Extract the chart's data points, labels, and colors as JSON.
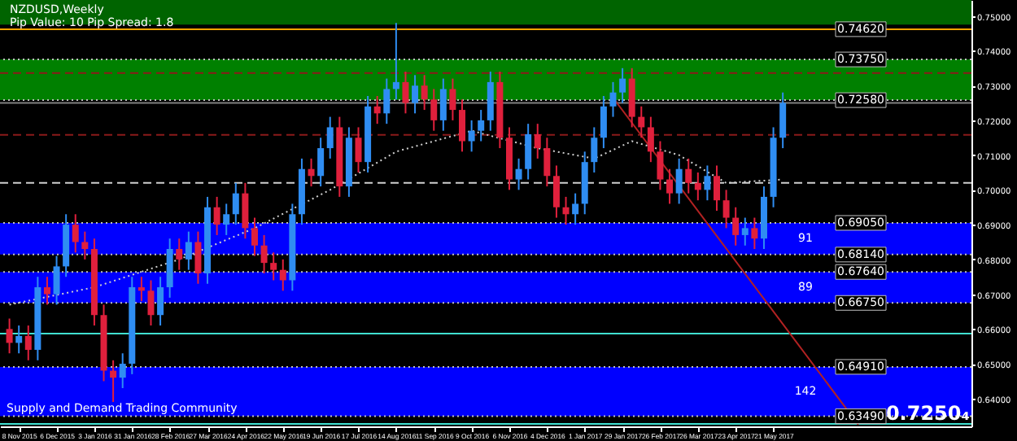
{
  "chart_data": {
    "type": "candlestick",
    "title": "NZDUSD,Weekly",
    "subtitle": "Pip Value: 10   Pip Spread: 1.8",
    "annotations": [
      "0.7250₄",
      "Supply and Demand Trading Community"
    ],
    "xlim": [
      "2015-10-25",
      "2017-10-15"
    ],
    "xticks": [
      {
        "value": "2015-11-08",
        "label": "8 Nov 2015"
      },
      {
        "value": "2015-12-06",
        "label": "6 Dec 2015"
      },
      {
        "value": "2016-01-03",
        "label": "3 Jan 2016"
      },
      {
        "value": "2016-01-31",
        "label": "31 Jan 2016"
      },
      {
        "value": "2016-02-28",
        "label": "28 Feb 2016"
      },
      {
        "value": "2016-03-27",
        "label": "27 Mar 2016"
      },
      {
        "value": "2016-04-24",
        "label": "24 Apr 2016"
      },
      {
        "value": "2016-05-22",
        "label": "22 May 2016"
      },
      {
        "value": "2016-06-19",
        "label": "19 Jun 2016"
      },
      {
        "value": "2016-07-17",
        "label": "17 Jul 2016"
      },
      {
        "value": "2016-08-14",
        "label": "14 Aug 2016"
      },
      {
        "value": "2016-09-11",
        "label": "11 Sep 2016"
      },
      {
        "value": "2016-10-09",
        "label": "9 Oct 2016"
      },
      {
        "value": "2016-11-06",
        "label": "6 Nov 2016"
      },
      {
        "value": "2016-12-04",
        "label": "4 Dec 2016"
      },
      {
        "value": "2017-01-01",
        "label": "1 Jan 2017"
      },
      {
        "value": "2017-01-29",
        "label": "29 Jan 2017"
      },
      {
        "value": "2017-02-26",
        "label": "26 Feb 2017"
      },
      {
        "value": "2017-03-26",
        "label": "26 Mar 2017"
      },
      {
        "value": "2017-04-23",
        "label": "23 Apr 2017"
      },
      {
        "value": "2017-05-21",
        "label": "21 May 2017"
      }
    ],
    "ylim": [
      0.632,
      0.7546
    ],
    "yticks": [
      {
        "value": 0.64,
        "label": "0.64000"
      },
      {
        "value": 0.65,
        "label": "0.65000"
      },
      {
        "value": 0.66,
        "label": "0.66000"
      },
      {
        "value": 0.67,
        "label": "0.67000"
      },
      {
        "value": 0.68,
        "label": "0.68000"
      },
      {
        "value": 0.69,
        "label": "0.69000"
      },
      {
        "value": 0.7,
        "label": "0.70000"
      },
      {
        "value": 0.71,
        "label": "0.71000"
      },
      {
        "value": 0.72,
        "label": "0.72000"
      },
      {
        "value": 0.73,
        "label": "0.73000"
      },
      {
        "value": 0.74,
        "label": "0.74000"
      },
      {
        "value": 0.75,
        "label": "0.75000"
      }
    ],
    "grid": false,
    "bands": [
      {
        "axis": "y",
        "from": 0.7475,
        "to": 0.7546,
        "color": "#006400"
      },
      {
        "axis": "y",
        "from": 0.7258,
        "to": 0.7375,
        "color": "#008000"
      },
      {
        "axis": "y",
        "from": 0.6814,
        "to": 0.6905,
        "label": "91",
        "color": "#0000ff"
      },
      {
        "axis": "y",
        "from": 0.6675,
        "to": 0.6764,
        "label": "89",
        "color": "#0000ff"
      },
      {
        "axis": "y",
        "from": 0.6349,
        "to": 0.6491,
        "label": "142",
        "color": "#0000ff"
      }
    ],
    "ref_lines": [
      {
        "axis": "y",
        "value": 0.7462,
        "label": "0.74620",
        "color": "#ffa500",
        "line_style": "solid"
      },
      {
        "axis": "y",
        "value": 0.7375,
        "label": "0.73750",
        "color": "#c0c0c0",
        "line_style": "dotted"
      },
      {
        "axis": "y",
        "value": 0.7258,
        "label": "0.72580",
        "color": "#c0c0c0",
        "line_style": "dotted"
      },
      {
        "axis": "y",
        "value": 0.725,
        "color": "#808080",
        "line_style": "solid"
      },
      {
        "axis": "y",
        "value": 0.7336,
        "color": "#8b1a1a",
        "line_style": "dashed"
      },
      {
        "axis": "y",
        "value": 0.7158,
        "color": "#8b1a1a",
        "line_style": "dashed"
      },
      {
        "axis": "y",
        "value": 0.702,
        "color": "#d0d0d0",
        "line_style": "dashed"
      },
      {
        "axis": "y",
        "value": 0.6905,
        "label": "0.69050",
        "color": "#c0c0c0",
        "line_style": "dotted"
      },
      {
        "axis": "y",
        "value": 0.6814,
        "label": "0.68140",
        "color": "#c0c0c0",
        "line_style": "dotted"
      },
      {
        "axis": "y",
        "value": 0.6764,
        "label": "0.67640",
        "color": "#c0c0c0",
        "line_style": "dotted"
      },
      {
        "axis": "y",
        "value": 0.6675,
        "label": "0.66750",
        "color": "#c0c0c0",
        "line_style": "dotted"
      },
      {
        "axis": "y",
        "value": 0.6587,
        "color": "#40e0d0",
        "line_style": "solid"
      },
      {
        "axis": "y",
        "value": 0.6491,
        "label": "0.64910",
        "color": "#c0c0c0",
        "line_style": "dotted"
      },
      {
        "axis": "y",
        "value": 0.6349,
        "label": "0.63490",
        "color": "#c0c0c0",
        "line_style": "dotted"
      },
      {
        "axis": "y",
        "value": 0.6327,
        "color": "#40e0d0",
        "line_style": "solid"
      }
    ],
    "series": [
      {
        "type": "candlestick",
        "colors": [
          "#e0203c",
          "#2f8df2",
          "#e0203c",
          "#2f8df2",
          "#e0203c",
          "#2f8df2",
          "#2f8df2",
          "#e0203c",
          "#e0203c",
          "#e0203c",
          "#e0203c",
          "#e0203c",
          "#2f8df2",
          "#2f8df2",
          "#e0203c",
          "#e0203c",
          "#2f8df2",
          "#2f8df2",
          "#e0203c",
          "#2f8df2",
          "#e0203c",
          "#2f8df2",
          "#e0203c",
          "#2f8df2",
          "#2f8df2",
          "#e0203c",
          "#e0203c",
          "#e0203c",
          "#e0203c",
          "#e0203c",
          "#2f8df2",
          "#2f8df2",
          "#e0203c",
          "#2f8df2",
          "#2f8df2",
          "#e0203c",
          "#2f8df2",
          "#e0203c",
          "#2f8df2",
          "#e0203c",
          "#2f8df2",
          "#2f8df2",
          "#e0203c",
          "#2f8df2",
          "#e0203c",
          "#e0203c",
          "#2f8df2",
          "#e0203c",
          "#e0203c",
          "#2f8df2",
          "#2f8df2",
          "#2f8df2",
          "#e0203c",
          "#e0203c",
          "#2f8df2",
          "#2f8df2",
          "#e0203c",
          "#e0203c",
          "#e0203c",
          "#e0203c",
          "#2f8df2",
          "#2f8df2",
          "#2f8df2",
          "#2f8df2",
          "#2f8df2",
          "#2f8df2",
          "#e0203c",
          "#e0203c",
          "#e0203c",
          "#e0203c",
          "#e0203c",
          "#2f8df2",
          "#e0203c",
          "#e0203c",
          "#2f8df2",
          "#e0203c",
          "#e0203c",
          "#e0203c",
          "#2f8df2",
          "#e0203c",
          "#2f8df2",
          "#2f8df2",
          "#2f8df2"
        ],
        "x": [
          "2015-11-01",
          "2015-11-08",
          "2015-11-15",
          "2015-11-22",
          "2015-11-29",
          "2015-12-06",
          "2015-12-13",
          "2015-12-20",
          "2015-12-27",
          "2016-01-03",
          "2016-01-10",
          "2016-01-17",
          "2016-01-24",
          "2016-01-31",
          "2016-02-07",
          "2016-02-14",
          "2016-02-21",
          "2016-02-28",
          "2016-03-06",
          "2016-03-13",
          "2016-03-20",
          "2016-03-27",
          "2016-04-03",
          "2016-04-10",
          "2016-04-17",
          "2016-04-24",
          "2016-05-01",
          "2016-05-08",
          "2016-05-15",
          "2016-05-22",
          "2016-05-29",
          "2016-06-05",
          "2016-06-12",
          "2016-06-19",
          "2016-06-26",
          "2016-07-03",
          "2016-07-10",
          "2016-07-17",
          "2016-07-24",
          "2016-07-31",
          "2016-08-07",
          "2016-08-14",
          "2016-08-21",
          "2016-08-28",
          "2016-09-04",
          "2016-09-11",
          "2016-09-18",
          "2016-09-25",
          "2016-10-02",
          "2016-10-09",
          "2016-10-16",
          "2016-10-23",
          "2016-10-30",
          "2016-11-06",
          "2016-11-13",
          "2016-11-20",
          "2016-11-27",
          "2016-12-04",
          "2016-12-11",
          "2016-12-18",
          "2016-12-25",
          "2017-01-01",
          "2017-01-08",
          "2017-01-15",
          "2017-01-22",
          "2017-01-29",
          "2017-02-05",
          "2017-02-12",
          "2017-02-19",
          "2017-02-26",
          "2017-03-05",
          "2017-03-12",
          "2017-03-19",
          "2017-03-26",
          "2017-04-02",
          "2017-04-09",
          "2017-04-16",
          "2017-04-23",
          "2017-04-30",
          "2017-05-07",
          "2017-05-14",
          "2017-05-21",
          "2017-05-28"
        ],
        "ohlc": [
          [
            0.66,
            0.663,
            0.653,
            0.656
          ],
          [
            0.656,
            0.661,
            0.653,
            0.658
          ],
          [
            0.658,
            0.661,
            0.651,
            0.654
          ],
          [
            0.654,
            0.675,
            0.651,
            0.672
          ],
          [
            0.672,
            0.675,
            0.667,
            0.67
          ],
          [
            0.67,
            0.681,
            0.667,
            0.678
          ],
          [
            0.678,
            0.693,
            0.675,
            0.69
          ],
          [
            0.69,
            0.693,
            0.682,
            0.685
          ],
          [
            0.685,
            0.688,
            0.68,
            0.683
          ],
          [
            0.683,
            0.686,
            0.661,
            0.664
          ],
          [
            0.664,
            0.667,
            0.645,
            0.648
          ],
          [
            0.648,
            0.651,
            0.639,
            0.646
          ],
          [
            0.646,
            0.653,
            0.643,
            0.65
          ],
          [
            0.65,
            0.675,
            0.647,
            0.672
          ],
          [
            0.672,
            0.675,
            0.668,
            0.671
          ],
          [
            0.671,
            0.674,
            0.661,
            0.664
          ],
          [
            0.664,
            0.675,
            0.661,
            0.672
          ],
          [
            0.672,
            0.686,
            0.669,
            0.683
          ],
          [
            0.683,
            0.686,
            0.677,
            0.68
          ],
          [
            0.68,
            0.688,
            0.677,
            0.685
          ],
          [
            0.685,
            0.688,
            0.673,
            0.676
          ],
          [
            0.676,
            0.698,
            0.673,
            0.695
          ],
          [
            0.695,
            0.698,
            0.687,
            0.69
          ],
          [
            0.69,
            0.696,
            0.687,
            0.693
          ],
          [
            0.693,
            0.702,
            0.69,
            0.699
          ],
          [
            0.699,
            0.702,
            0.686,
            0.689
          ],
          [
            0.689,
            0.692,
            0.681,
            0.684
          ],
          [
            0.684,
            0.687,
            0.676,
            0.679
          ],
          [
            0.679,
            0.682,
            0.674,
            0.677
          ],
          [
            0.677,
            0.68,
            0.671,
            0.674
          ],
          [
            0.674,
            0.696,
            0.671,
            0.693
          ],
          [
            0.693,
            0.709,
            0.69,
            0.706
          ],
          [
            0.706,
            0.709,
            0.701,
            0.704
          ],
          [
            0.704,
            0.715,
            0.701,
            0.712
          ],
          [
            0.712,
            0.721,
            0.709,
            0.718
          ],
          [
            0.718,
            0.721,
            0.698,
            0.701
          ],
          [
            0.701,
            0.718,
            0.698,
            0.715
          ],
          [
            0.715,
            0.718,
            0.705,
            0.708
          ],
          [
            0.708,
            0.727,
            0.705,
            0.724
          ],
          [
            0.724,
            0.727,
            0.719,
            0.722
          ],
          [
            0.722,
            0.732,
            0.719,
            0.729
          ],
          [
            0.729,
            0.748,
            0.726,
            0.731
          ],
          [
            0.731,
            0.734,
            0.722,
            0.725
          ],
          [
            0.725,
            0.733,
            0.722,
            0.73
          ],
          [
            0.73,
            0.733,
            0.723,
            0.726
          ],
          [
            0.726,
            0.729,
            0.717,
            0.72
          ],
          [
            0.72,
            0.732,
            0.717,
            0.729
          ],
          [
            0.729,
            0.732,
            0.72,
            0.723
          ],
          [
            0.723,
            0.726,
            0.711,
            0.714
          ],
          [
            0.714,
            0.72,
            0.711,
            0.717
          ],
          [
            0.717,
            0.723,
            0.714,
            0.72
          ],
          [
            0.72,
            0.734,
            0.717,
            0.731
          ],
          [
            0.731,
            0.734,
            0.712,
            0.715
          ],
          [
            0.715,
            0.718,
            0.7,
            0.703
          ],
          [
            0.703,
            0.709,
            0.7,
            0.706
          ],
          [
            0.706,
            0.719,
            0.703,
            0.716
          ],
          [
            0.716,
            0.719,
            0.709,
            0.712
          ],
          [
            0.712,
            0.715,
            0.701,
            0.704
          ],
          [
            0.704,
            0.707,
            0.692,
            0.695
          ],
          [
            0.695,
            0.698,
            0.69,
            0.693
          ],
          [
            0.693,
            0.699,
            0.69,
            0.696
          ],
          [
            0.696,
            0.711,
            0.693,
            0.708
          ],
          [
            0.708,
            0.718,
            0.705,
            0.715
          ],
          [
            0.715,
            0.727,
            0.712,
            0.724
          ],
          [
            0.724,
            0.731,
            0.721,
            0.728
          ],
          [
            0.728,
            0.735,
            0.725,
            0.732
          ],
          [
            0.732,
            0.735,
            0.718,
            0.721
          ],
          [
            0.721,
            0.724,
            0.715,
            0.718
          ],
          [
            0.718,
            0.721,
            0.708,
            0.711
          ],
          [
            0.711,
            0.714,
            0.7,
            0.703
          ],
          [
            0.703,
            0.706,
            0.696,
            0.699
          ],
          [
            0.699,
            0.709,
            0.696,
            0.706
          ],
          [
            0.706,
            0.709,
            0.699,
            0.702
          ],
          [
            0.702,
            0.705,
            0.697,
            0.7
          ],
          [
            0.7,
            0.707,
            0.697,
            0.704
          ],
          [
            0.704,
            0.707,
            0.694,
            0.697
          ],
          [
            0.697,
            0.7,
            0.689,
            0.692
          ],
          [
            0.692,
            0.695,
            0.684,
            0.687
          ],
          [
            0.687,
            0.692,
            0.684,
            0.689
          ],
          [
            0.689,
            0.692,
            0.683,
            0.686
          ],
          [
            0.686,
            0.701,
            0.683,
            0.698
          ],
          [
            0.698,
            0.718,
            0.695,
            0.715
          ],
          [
            0.715,
            0.728,
            0.712,
            0.725
          ]
        ]
      },
      {
        "type": "line",
        "color": "#b22222",
        "line_style": "solid",
        "x": [
          "2017-01-22",
          "2017-07-23"
        ],
        "values": [
          0.7265,
          0.6325
        ]
      },
      {
        "type": "line",
        "color": "#d0d0d0",
        "line_style": "dotted",
        "x": [
          "2015-11-01",
          "2016-01-03",
          "2016-03-06",
          "2016-05-01",
          "2016-06-26",
          "2016-08-14",
          "2016-10-09",
          "2016-11-27",
          "2017-01-08",
          "2017-02-05",
          "2017-03-12",
          "2017-04-16",
          "2017-05-28"
        ],
        "values": [
          0.667,
          0.672,
          0.68,
          0.689,
          0.7,
          0.711,
          0.717,
          0.712,
          0.709,
          0.714,
          0.71,
          0.702,
          0.703
        ]
      }
    ]
  }
}
